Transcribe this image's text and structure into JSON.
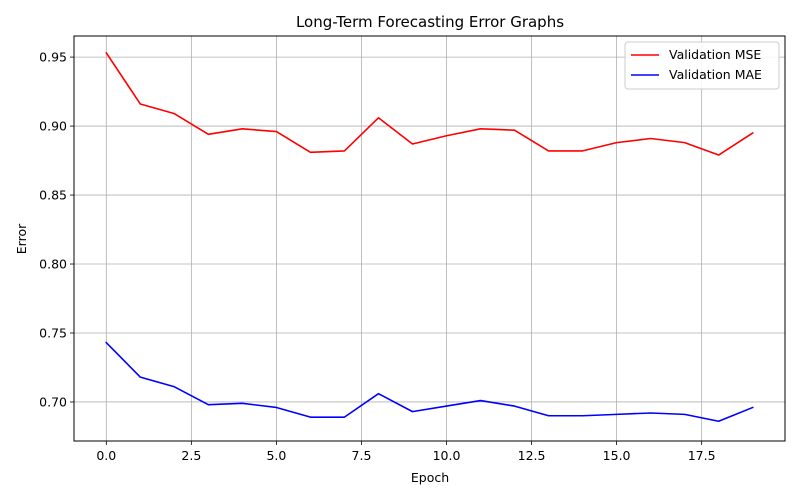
{
  "chart_data": {
    "type": "line",
    "title": "Long-Term Forecasting Error Graphs",
    "xlabel": "Epoch",
    "ylabel": "Error",
    "xlim": [
      -0.95,
      19.95
    ],
    "ylim": [
      0.6717,
      0.9653
    ],
    "grid": true,
    "legend_position": "top-right",
    "x": [
      0,
      1,
      2,
      3,
      4,
      5,
      6,
      7,
      8,
      9,
      10,
      11,
      12,
      13,
      14,
      15,
      16,
      17,
      18,
      19
    ],
    "x_ticks": [
      {
        "value": 0,
        "label": "0.0"
      },
      {
        "value": 2.5,
        "label": "2.5"
      },
      {
        "value": 5,
        "label": "5.0"
      },
      {
        "value": 7.5,
        "label": "7.5"
      },
      {
        "value": 10,
        "label": "10.0"
      },
      {
        "value": 12.5,
        "label": "12.5"
      },
      {
        "value": 15,
        "label": "15.0"
      },
      {
        "value": 17.5,
        "label": "17.5"
      }
    ],
    "y_ticks": [
      {
        "value": 0.7,
        "label": "0.70"
      },
      {
        "value": 0.75,
        "label": "0.75"
      },
      {
        "value": 0.8,
        "label": "0.80"
      },
      {
        "value": 0.85,
        "label": "0.85"
      },
      {
        "value": 0.9,
        "label": "0.90"
      },
      {
        "value": 0.95,
        "label": "0.95"
      }
    ],
    "series": [
      {
        "name": "Validation MSE",
        "color": "#ff0000",
        "values": [
          0.953,
          0.916,
          0.909,
          0.894,
          0.898,
          0.896,
          0.881,
          0.882,
          0.906,
          0.887,
          0.893,
          0.898,
          0.897,
          0.882,
          0.882,
          0.888,
          0.891,
          0.888,
          0.879,
          0.895
        ]
      },
      {
        "name": "Validation MAE",
        "color": "#0000ff",
        "values": [
          0.743,
          0.718,
          0.711,
          0.698,
          0.699,
          0.696,
          0.689,
          0.689,
          0.706,
          0.693,
          0.697,
          0.701,
          0.697,
          0.69,
          0.69,
          0.691,
          0.692,
          0.691,
          0.686,
          0.696
        ]
      }
    ]
  }
}
